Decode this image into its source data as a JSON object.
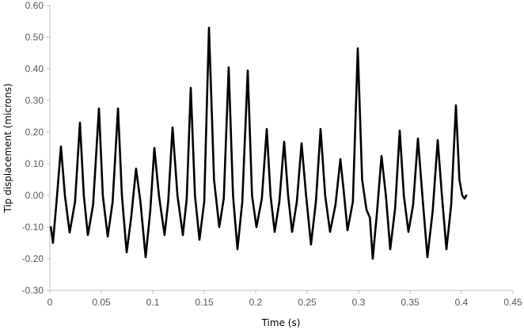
{
  "chart_data": {
    "type": "line",
    "title": "",
    "xlabel": "Time (s)",
    "ylabel": "Tip displacement (microns)",
    "xlim": [
      0,
      0.45
    ],
    "ylim": [
      -0.3,
      0.6
    ],
    "x_ticks": [
      "0",
      "0.05",
      "0.1",
      "0.15",
      "0.2",
      "0.25",
      "0.3",
      "0.35",
      "0.4",
      "0.45"
    ],
    "y_ticks": [
      "0.60",
      "0.50",
      "0.40",
      "0.30",
      "0.20",
      "0.10",
      "0.00",
      "-0.10",
      "-0.20",
      "-0.30"
    ],
    "grid": false,
    "legend": null,
    "series": [
      {
        "name": "Tip displacement",
        "color": "#000000",
        "x": [
          0.001,
          0.003,
          0.007,
          0.0108,
          0.0146,
          0.0192,
          0.0245,
          0.0292,
          0.033,
          0.0369,
          0.042,
          0.0477,
          0.0515,
          0.0562,
          0.061,
          0.0662,
          0.07,
          0.0746,
          0.079,
          0.0838,
          0.088,
          0.0931,
          0.0975,
          0.1015,
          0.106,
          0.1115,
          0.115,
          0.1192,
          0.124,
          0.1292,
          0.133,
          0.1369,
          0.141,
          0.1454,
          0.15,
          0.1546,
          0.1595,
          0.1646,
          0.169,
          0.1738,
          0.178,
          0.1823,
          0.187,
          0.1923,
          0.1965,
          0.2008,
          0.206,
          0.2108,
          0.2145,
          0.2185,
          0.223,
          0.2277,
          0.2315,
          0.2354,
          0.24,
          0.2446,
          0.249,
          0.2538,
          0.2585,
          0.2631,
          0.2675,
          0.2723,
          0.2775,
          0.2823,
          0.286,
          0.2892,
          0.2945,
          0.2992,
          0.3035,
          0.3077,
          0.311,
          0.3138,
          0.318,
          0.3223,
          0.3265,
          0.3308,
          0.3355,
          0.34,
          0.344,
          0.3485,
          0.353,
          0.3577,
          0.362,
          0.3669,
          0.372,
          0.3769,
          0.381,
          0.3854,
          0.39,
          0.3946,
          0.398,
          0.4008,
          0.4031,
          0.4046
        ],
        "y": [
          -0.1,
          -0.15,
          0.0,
          0.155,
          0.0,
          -0.117,
          -0.02,
          0.23,
          0.0,
          -0.125,
          -0.03,
          0.275,
          0.0,
          -0.13,
          -0.02,
          0.275,
          0.0,
          -0.18,
          -0.07,
          0.085,
          -0.02,
          -0.195,
          -0.05,
          0.15,
          0.0,
          -0.125,
          -0.02,
          0.215,
          0.0,
          -0.125,
          -0.01,
          0.34,
          0.0,
          -0.14,
          -0.02,
          0.53,
          0.05,
          -0.1,
          -0.01,
          0.405,
          0.0,
          -0.17,
          -0.02,
          0.395,
          0.0,
          -0.1,
          -0.01,
          0.21,
          0.0,
          -0.115,
          -0.02,
          0.17,
          0.0,
          -0.115,
          -0.02,
          0.165,
          0.0,
          -0.155,
          -0.02,
          0.21,
          0.0,
          -0.115,
          -0.03,
          0.115,
          0.0,
          -0.11,
          -0.02,
          0.465,
          0.05,
          -0.045,
          -0.07,
          -0.2,
          -0.05,
          0.125,
          0.0,
          -0.17,
          -0.04,
          0.205,
          0.0,
          -0.115,
          -0.03,
          0.18,
          0.0,
          -0.195,
          -0.05,
          0.175,
          0.0,
          -0.17,
          -0.03,
          0.285,
          0.05,
          0.0,
          -0.01,
          0.0
        ]
      }
    ]
  }
}
